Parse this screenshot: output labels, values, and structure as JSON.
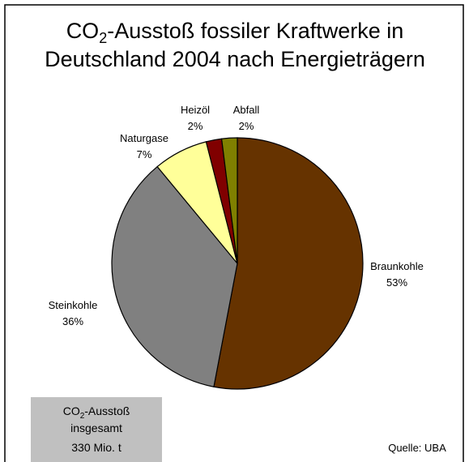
{
  "chart_data": {
    "type": "pie",
    "title": {
      "line1": {
        "main": "CO",
        "sub": "2",
        "rest": "-Ausstoß fossiler Kraftwerke in"
      },
      "line2": "Deutschland 2004 nach Energieträgern"
    },
    "categories": [
      "Braunkohle",
      "Steinkohle",
      "Naturgase",
      "Heizöl",
      "Abfall"
    ],
    "values": [
      53,
      36,
      7,
      2,
      2
    ],
    "value_labels": [
      "53%",
      "36%",
      "7%",
      "2%",
      "2%"
    ],
    "colors": [
      "#663300",
      "#808080",
      "#ffff99",
      "#800000",
      "#808000"
    ],
    "total": {
      "line1": {
        "main": "CO",
        "sub": "2",
        "rest": "-Ausstoß"
      },
      "line2": "insgesamt",
      "line3": "330 Mio. t"
    },
    "source": "Quelle: UBA"
  }
}
